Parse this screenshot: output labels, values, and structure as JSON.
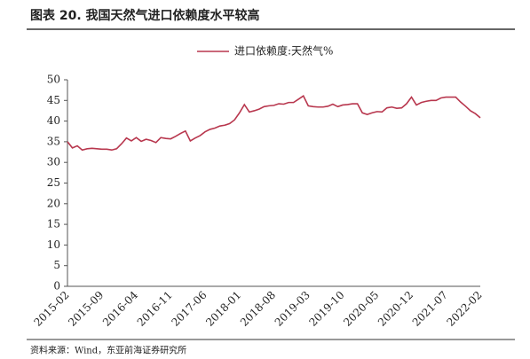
{
  "chart_data": {
    "type": "line",
    "title": "图表 20. 我国天然气进口依赖度水平较高",
    "source": "资料来源：Wind，东亚前海证券研究所",
    "categories": [
      "2015-02",
      null,
      null,
      null,
      null,
      null,
      null,
      "2015-09",
      null,
      null,
      null,
      null,
      null,
      null,
      "2016-04",
      null,
      null,
      null,
      null,
      null,
      null,
      "2016-11",
      null,
      null,
      null,
      null,
      null,
      null,
      "2017-06",
      null,
      null,
      null,
      null,
      null,
      null,
      "2018-01",
      null,
      null,
      null,
      null,
      null,
      null,
      "2018-08",
      null,
      null,
      null,
      null,
      null,
      null,
      "2019-03",
      null,
      null,
      null,
      null,
      null,
      null,
      "2019-10",
      null,
      null,
      null,
      null,
      null,
      null,
      "2020-05",
      null,
      null,
      null,
      null,
      null,
      null,
      "2020-12",
      null,
      null,
      null,
      null,
      null,
      null,
      "2021-07",
      null,
      null,
      null,
      null,
      null,
      null,
      "2022-02"
    ],
    "series": [
      {
        "name": "进口依赖度:天然气%",
        "color": "#b8374e",
        "values": [
          35,
          33.5,
          34,
          33,
          33.3,
          33.4,
          33.3,
          33.2,
          33.2,
          33,
          33.3,
          34.5,
          35.9,
          35.2,
          36,
          35.1,
          35.6,
          35.3,
          34.8,
          36,
          35.8,
          35.7,
          36.3,
          37,
          37.6,
          35.2,
          35.9,
          36.5,
          37.4,
          38,
          38.3,
          38.8,
          39,
          39.4,
          40.3,
          42,
          44,
          42.2,
          42.5,
          42.9,
          43.5,
          43.7,
          43.8,
          44.2,
          44.1,
          44.5,
          44.5,
          45.3,
          46.1,
          43.7,
          43.5,
          43.4,
          43.4,
          43.6,
          44.1,
          43.5,
          43.9,
          44,
          44.2,
          44.2,
          42,
          41.6,
          42,
          42.3,
          42.2,
          43.2,
          43.4,
          43.1,
          43.2,
          44.2,
          45.8,
          43.9,
          44.5,
          44.8,
          45,
          45,
          45.6,
          45.8,
          45.8,
          45.8,
          44.6,
          43.6,
          42.5,
          41.8,
          40.8
        ]
      }
    ],
    "ylim": [
      0,
      50
    ],
    "yticks": [
      0,
      5,
      10,
      15,
      20,
      25,
      30,
      35,
      40,
      45,
      50
    ],
    "legend": "top"
  }
}
